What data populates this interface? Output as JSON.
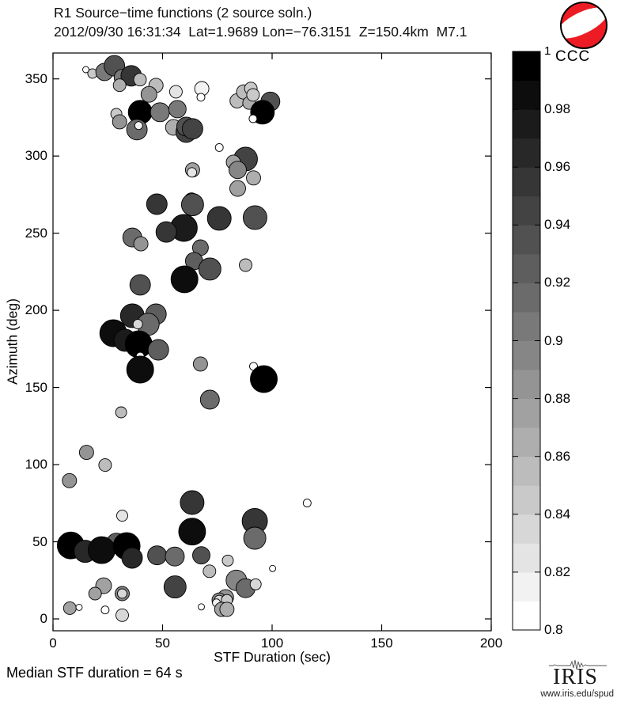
{
  "header": {
    "title_line1": "R1 Source−time functions (2 source soln.)",
    "title_line2": "2012/09/30 16:31:34  Lat=1.9689 Lon=−76.3151  Z=150.4km  M7.1"
  },
  "beachball": {
    "fill": "#ed1c24",
    "band": "#ffffff",
    "outline": "#000000"
  },
  "footer": {
    "median_text": "Median STF duration = 64 s",
    "logo_text": "IRIS",
    "logo_url": "www.iris.edu/spud"
  },
  "chart_data": {
    "type": "scatter",
    "title": "R1 Source−time functions (2 source soln.)",
    "subtitle": "2012/09/30 16:31:34  Lat=1.9689 Lon=−76.3151  Z=150.4km  M7.1",
    "xlabel": "STF Duration (sec)",
    "ylabel": "Azimuth (deg)",
    "xlim": [
      0,
      200
    ],
    "ylim": [
      -8,
      367
    ],
    "xticks": [
      0,
      50,
      100,
      150,
      200
    ],
    "yticks": [
      0,
      50,
      100,
      150,
      200,
      250,
      300,
      350
    ],
    "grid": false,
    "marker": "circle",
    "colorbar": {
      "label": "CCC",
      "min": 0.8,
      "max": 1,
      "blocks": 20,
      "tick_values": [
        0.8,
        0.82,
        0.84,
        0.86,
        0.88,
        0.9,
        0.92,
        0.94,
        0.96,
        0.98,
        1
      ],
      "tick_labels": [
        "0.8",
        "0.82",
        "0.84",
        "0.86",
        "0.88",
        "0.9",
        "0.92",
        "0.94",
        "0.96",
        "0.98",
        "1"
      ]
    },
    "point_format": [
      "stf_duration_sec",
      "azimuth_deg",
      "marker_radius_px",
      "ccc"
    ],
    "points": [
      [
        15,
        356,
        4,
        0.8
      ],
      [
        18,
        353.5,
        6,
        0.84
      ],
      [
        23.5,
        354.5,
        11,
        0.9
      ],
      [
        28,
        358.5,
        13,
        0.93
      ],
      [
        31.5,
        351,
        10,
        0.9
      ],
      [
        35.7,
        352,
        13,
        0.95
      ],
      [
        30.4,
        345.9,
        8,
        0.86
      ],
      [
        39.7,
        349.5,
        8,
        0.85
      ],
      [
        47,
        345.8,
        9,
        0.85
      ],
      [
        43.8,
        340,
        10,
        0.88
      ],
      [
        39.8,
        328.4,
        15,
        0.99
      ],
      [
        38.3,
        317.1,
        13,
        0.91
      ],
      [
        39.1,
        319.7,
        5,
        0.81
      ],
      [
        28.9,
        327.3,
        7,
        0.84
      ],
      [
        30.4,
        322.2,
        9,
        0.88
      ],
      [
        48.8,
        328.4,
        12,
        0.9
      ],
      [
        56.1,
        341.7,
        8,
        0.82
      ],
      [
        56.8,
        330.4,
        11,
        0.9
      ],
      [
        55,
        318.6,
        10,
        0.86
      ],
      [
        60.8,
        315.5,
        13,
        0.94
      ],
      [
        60.8,
        319.1,
        12,
        0.93
      ],
      [
        63.7,
        317.6,
        13,
        0.94
      ],
      [
        67.9,
        343.7,
        9,
        0.81
      ],
      [
        67.5,
        338.1,
        5,
        0.8
      ],
      [
        75.9,
        305.5,
        5,
        0.8
      ],
      [
        84,
        335.8,
        9,
        0.85
      ],
      [
        87,
        341.5,
        9,
        0.85
      ],
      [
        89.5,
        334.4,
        8,
        0.86
      ],
      [
        90.3,
        343.8,
        8,
        0.84
      ],
      [
        91.3,
        339.6,
        8,
        0.84
      ],
      [
        99.2,
        335.3,
        12,
        0.93
      ],
      [
        95.6,
        328.4,
        15,
        0.99
      ],
      [
        91.3,
        324.2,
        5,
        0.8
      ],
      [
        87.9,
        298,
        15,
        0.94
      ],
      [
        82.3,
        296,
        9,
        0.87
      ],
      [
        84.3,
        291,
        11,
        0.89
      ],
      [
        91.5,
        285.8,
        9,
        0.86
      ],
      [
        84.3,
        279,
        10,
        0.87
      ],
      [
        63.7,
        291,
        9,
        0.87
      ],
      [
        63.4,
        289.4,
        6,
        0.82
      ],
      [
        63.2,
        271.5,
        9,
        0.9
      ],
      [
        63.7,
        268.5,
        14,
        0.93
      ],
      [
        47.4,
        268.8,
        13,
        0.95
      ],
      [
        75.9,
        259.6,
        15,
        0.95
      ],
      [
        92.2,
        260.1,
        15,
        0.93
      ],
      [
        59.7,
        253.4,
        17,
        0.97
      ],
      [
        51.7,
        250.8,
        13,
        0.95
      ],
      [
        36.2,
        247.2,
        12,
        0.91
      ],
      [
        40.1,
        243.1,
        9,
        0.88
      ],
      [
        67.3,
        240.6,
        10,
        0.91
      ],
      [
        64.4,
        231.9,
        11,
        0.92
      ],
      [
        71.6,
        226.8,
        14,
        0.93
      ],
      [
        87.9,
        229.3,
        8,
        0.85
      ],
      [
        60,
        220.1,
        17,
        0.98
      ],
      [
        39.8,
        216.5,
        13,
        0.93
      ],
      [
        36.2,
        196.5,
        15,
        0.96
      ],
      [
        47,
        197.5,
        13,
        0.92
      ],
      [
        43.4,
        190.9,
        14,
        0.91
      ],
      [
        38.7,
        191,
        6,
        0.83
      ],
      [
        27.5,
        185.2,
        17,
        0.98
      ],
      [
        32.9,
        180.6,
        14,
        0.97
      ],
      [
        39.1,
        178,
        17,
        0.99
      ],
      [
        48.1,
        174.4,
        13,
        0.92
      ],
      [
        39.8,
        170.3,
        5,
        0.81
      ],
      [
        39.8,
        161.6,
        17,
        0.98
      ],
      [
        67.3,
        165.2,
        9,
        0.88
      ],
      [
        91.5,
        163.7,
        5,
        0.8
      ],
      [
        96.2,
        155.4,
        17,
        0.99
      ],
      [
        71.6,
        142.1,
        12,
        0.91
      ],
      [
        31.1,
        133.9,
        7,
        0.85
      ],
      [
        15.3,
        107.9,
        9,
        0.88
      ],
      [
        23.8,
        99.7,
        8,
        0.85
      ],
      [
        7.5,
        89.6,
        9,
        0.88
      ],
      [
        31.6,
        66.9,
        7,
        0.82
      ],
      [
        63.5,
        75.4,
        15,
        0.95
      ],
      [
        116,
        75.1,
        5,
        0.8
      ],
      [
        92.1,
        63.4,
        16,
        0.95
      ],
      [
        92.1,
        52.3,
        14,
        0.91
      ],
      [
        63.5,
        56.6,
        17,
        0.98
      ],
      [
        8.1,
        47.6,
        17,
        0.99
      ],
      [
        14.7,
        43.8,
        14,
        0.96
      ],
      [
        29,
        48.9,
        13,
        0.92
      ],
      [
        22.2,
        44.6,
        17,
        0.98
      ],
      [
        33.6,
        47.2,
        17,
        0.99
      ],
      [
        36.1,
        39.5,
        13,
        0.96
      ],
      [
        47.5,
        41.2,
        12,
        0.93
      ],
      [
        55.6,
        40.4,
        12,
        0.91
      ],
      [
        67.7,
        41.2,
        11,
        0.93
      ],
      [
        71.4,
        30.9,
        8,
        0.85
      ],
      [
        55.7,
        20.7,
        14,
        0.94
      ],
      [
        23.1,
        21.5,
        10,
        0.87
      ],
      [
        19.2,
        16.4,
        8,
        0.87
      ],
      [
        31.6,
        16.4,
        9,
        0.89
      ],
      [
        31.6,
        16.4,
        6,
        0.83
      ],
      [
        7.7,
        7,
        8,
        0.87
      ],
      [
        11.9,
        7.5,
        4,
        0.8
      ],
      [
        23.8,
        5.8,
        5,
        0.8
      ],
      [
        31.6,
        2.4,
        8,
        0.83
      ],
      [
        67.7,
        7.8,
        4,
        0.8
      ],
      [
        79.8,
        37.8,
        7,
        0.84
      ],
      [
        100.2,
        32.7,
        4,
        0.8
      ],
      [
        83.7,
        25,
        13,
        0.89
      ],
      [
        87.9,
        19.9,
        12,
        0.91
      ],
      [
        92.5,
        22.4,
        7,
        0.83
      ],
      [
        78.8,
        13.9,
        10,
        0.88
      ],
      [
        75.8,
        12.2,
        9,
        0.89
      ],
      [
        75.8,
        12.2,
        6,
        0.83
      ],
      [
        79.4,
        12.2,
        7,
        0.84
      ],
      [
        74.6,
        10.4,
        5,
        0.81
      ],
      [
        77,
        6.2,
        9,
        0.87
      ],
      [
        79.4,
        6.2,
        9,
        0.86
      ]
    ]
  }
}
